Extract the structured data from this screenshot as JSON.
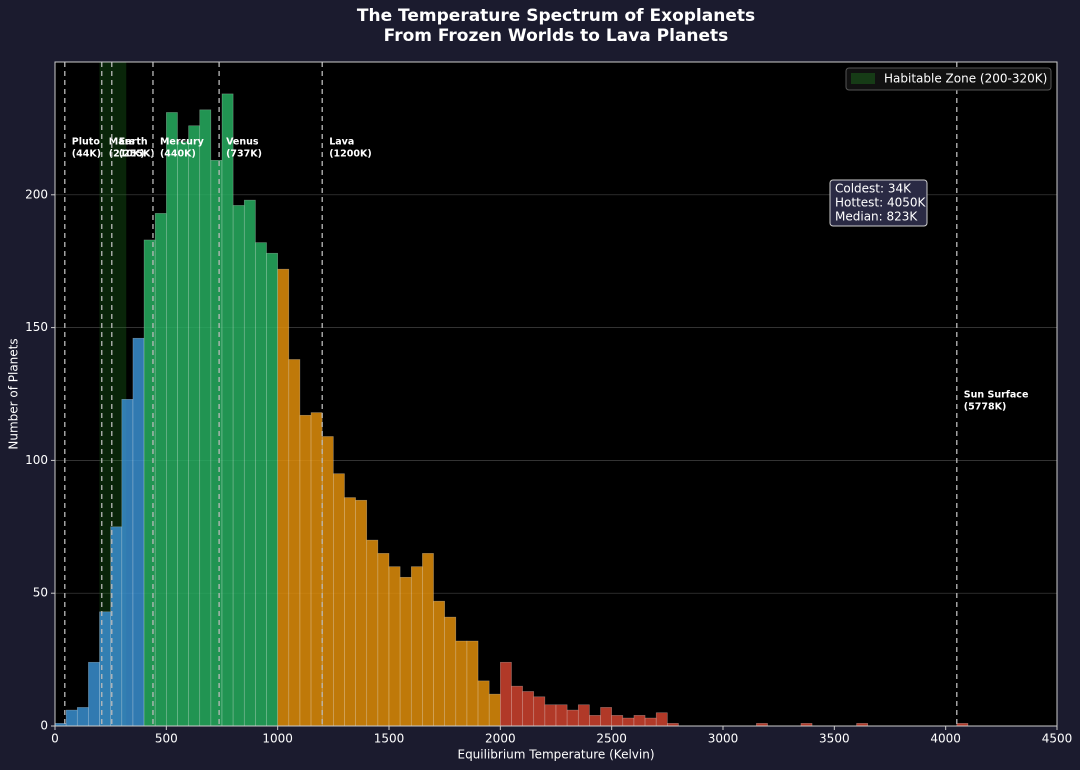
{
  "chart_data": {
    "type": "histogram",
    "title": "The Temperature Spectrum of Exoplanets",
    "subtitle": "From Frozen Worlds to Lava Planets",
    "x_label": "Equilibrium Temperature (Kelvin)",
    "y_label": "Number of Planets",
    "xlim": [
      0,
      4500
    ],
    "ylim": [
      0,
      250
    ],
    "xticks": [
      0,
      500,
      1000,
      1500,
      2000,
      2500,
      3000,
      3500,
      4000,
      4500
    ],
    "yticks": [
      0,
      50,
      100,
      150,
      200
    ],
    "grid": true,
    "series": [
      {
        "color": "#3a8fd0",
        "bins": [
          0,
          50,
          100,
          150,
          200,
          250,
          300,
          350,
          400
        ],
        "values": [
          1,
          6,
          7,
          24,
          43,
          75,
          123,
          146
        ]
      },
      {
        "color": "#27ae60",
        "bins": [
          400,
          450,
          500,
          550,
          600,
          650,
          700,
          750,
          800,
          850,
          900,
          950,
          1000
        ],
        "values": [
          183,
          193,
          231,
          220,
          226,
          232,
          213,
          238,
          196,
          198,
          182,
          178
        ]
      },
      {
        "color": "#e08e0b",
        "bins": [
          1000,
          1050,
          1100,
          1150,
          1200,
          1250,
          1300,
          1350,
          1400,
          1450,
          1500,
          1550,
          1600,
          1650,
          1700,
          1750,
          1800,
          1850,
          1900,
          1950,
          2000
        ],
        "values": [
          172,
          138,
          117,
          118,
          109,
          95,
          86,
          85,
          70,
          65,
          60,
          56,
          60,
          65,
          47,
          41,
          32,
          32,
          17,
          12
        ]
      },
      {
        "color": "#d0432f",
        "bins": [
          2000,
          2050,
          2100,
          2150,
          2200,
          2250,
          2300,
          2350,
          2400,
          2450,
          2500,
          2550,
          2600,
          2650,
          2700,
          2750,
          2800,
          2850,
          2900,
          2950,
          3000,
          3050,
          3100,
          3150,
          3200,
          3250,
          3300,
          3350,
          3400,
          3450,
          3500,
          3550,
          3600,
          3650,
          3700,
          3750,
          3800,
          3850,
          3900,
          3950,
          4000,
          4050,
          4100
        ],
        "values": [
          24,
          15,
          13,
          11,
          8,
          8,
          6,
          8,
          4,
          7,
          4,
          3,
          4,
          3,
          5,
          1,
          0,
          0,
          0,
          0,
          0,
          0,
          0,
          1,
          0,
          0,
          0,
          1,
          0,
          0,
          0,
          0,
          1,
          0,
          0,
          0,
          0,
          0,
          0,
          0,
          0,
          1
        ]
      }
    ],
    "annotations": [
      {
        "x": 44,
        "label": "Pluto",
        "sublabel": "(44K)"
      },
      {
        "x": 210,
        "label": "Mars",
        "sublabel": "(210K)"
      },
      {
        "x": 255,
        "label": "Earth",
        "sublabel": "(255K)"
      },
      {
        "x": 440,
        "label": "Mercury",
        "sublabel": "(440K)"
      },
      {
        "x": 737,
        "label": "Venus",
        "sublabel": "(737K)"
      },
      {
        "x": 1200,
        "label": "Lava",
        "sublabel": "(1200K)"
      },
      {
        "x": 4050,
        "label": "Sun Surface",
        "sublabel": "(5778K)"
      }
    ],
    "habitable_zone": {
      "range": [
        200,
        320
      ],
      "label": "Habitable Zone (200-320K)",
      "color": "#1e7a1e"
    },
    "legend_position": "upper right",
    "stats": [
      "Coldest: 34K",
      "Hottest: 4050K",
      "Median: 823K"
    ]
  }
}
